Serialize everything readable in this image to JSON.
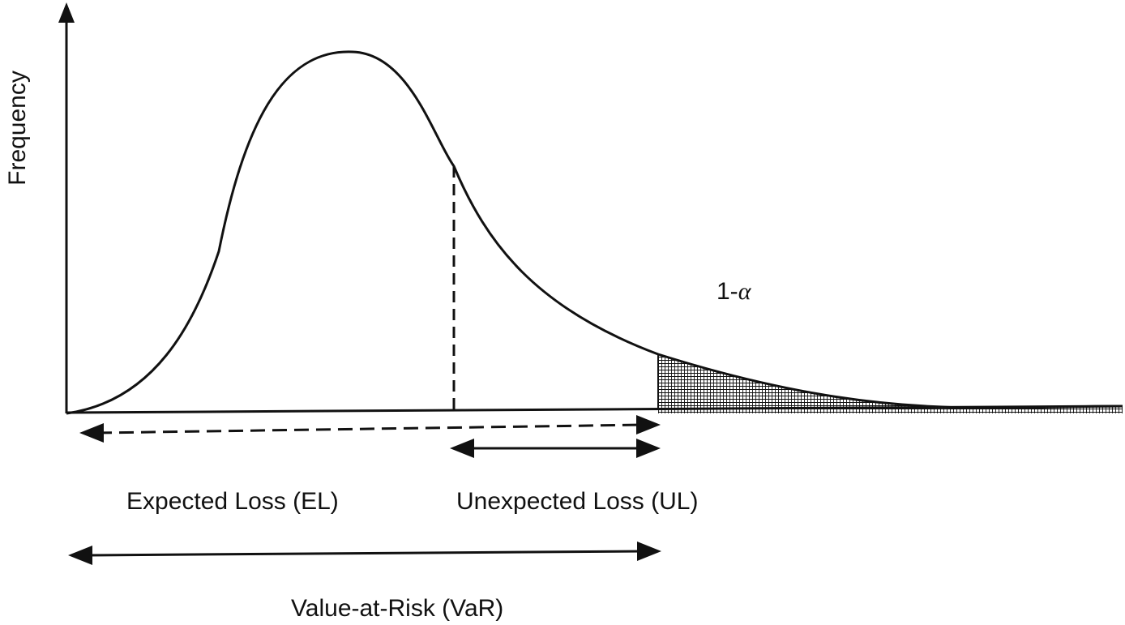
{
  "labels": {
    "y_axis": "Frequency",
    "tail_prefix": "1-",
    "tail_symbol": "α",
    "expected_loss": "Expected Loss (EL)",
    "unexpected_loss": "Unexpected Loss (UL)",
    "value_at_risk": "Value-at-Risk (VaR)"
  },
  "colors": {
    "ink": "#111111",
    "background": "#ffffff"
  }
}
